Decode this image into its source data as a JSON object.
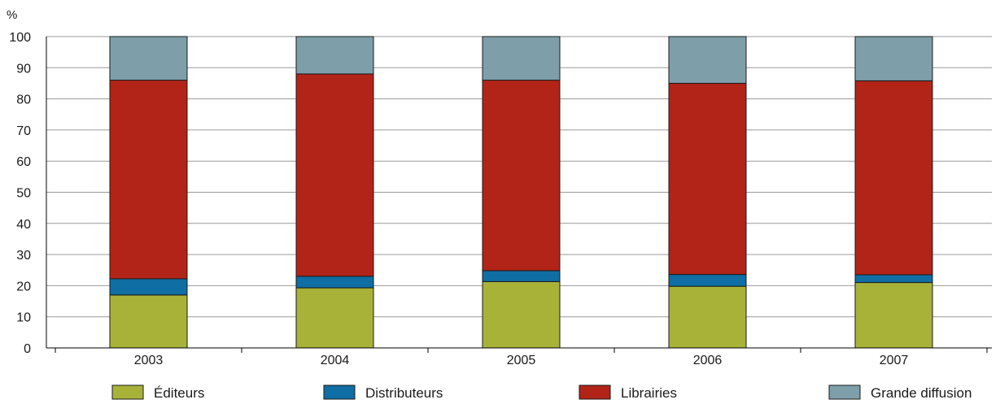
{
  "chart_data": {
    "type": "bar",
    "stacked": true,
    "y_unit": "%",
    "categories": [
      "2003",
      "2004",
      "2005",
      "2006",
      "2007"
    ],
    "ylim": [
      0,
      100
    ],
    "yticks": [
      "0",
      "10",
      "20",
      "30",
      "40",
      "50",
      "60",
      "70",
      "80",
      "90",
      "100"
    ],
    "grid": true,
    "legend_position": "bottom",
    "series": [
      {
        "name": "Éditeurs",
        "color": "#a8b239",
        "values": [
          17,
          19.3,
          21.3,
          19.8,
          21
        ]
      },
      {
        "name": "Distributeurs",
        "color": "#0f6ea3",
        "values": [
          5.2,
          3.7,
          3.5,
          3.8,
          2.5
        ]
      },
      {
        "name": "Librairies",
        "color": "#b22417",
        "values": [
          63.8,
          65,
          61.2,
          61.4,
          62.3
        ]
      },
      {
        "name": "Grande diffusion",
        "color": "#7e9faa",
        "values": [
          14,
          12,
          14,
          15,
          14.2
        ]
      }
    ]
  }
}
